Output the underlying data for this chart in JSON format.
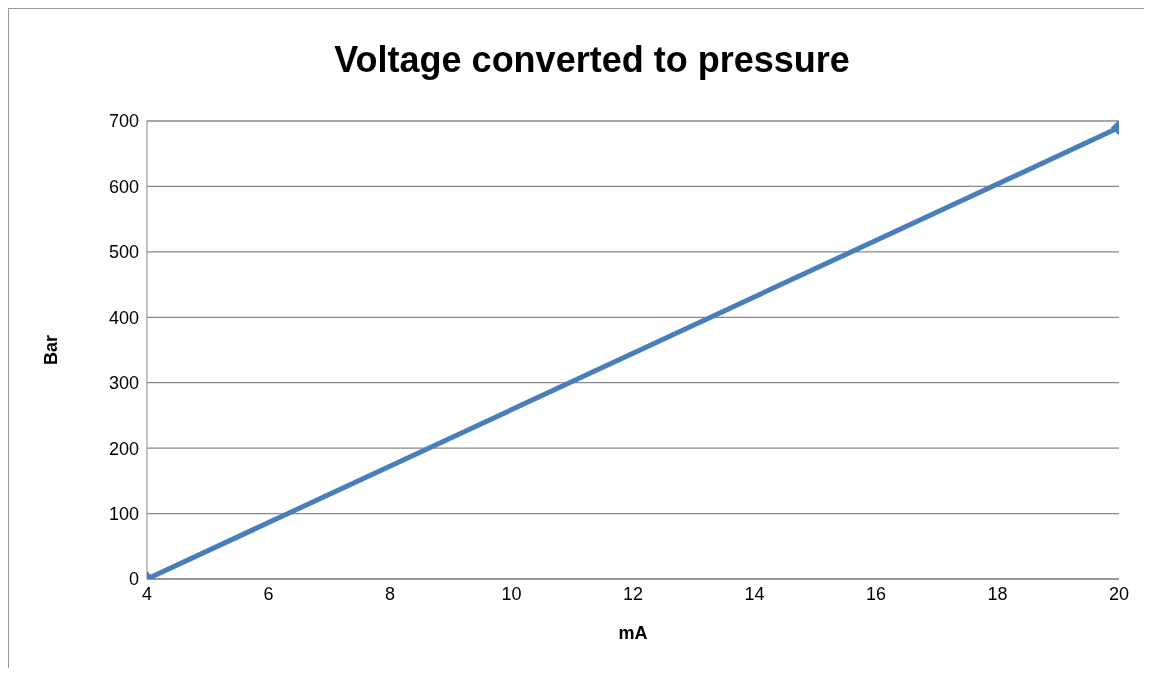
{
  "chart_data": {
    "type": "line",
    "title": "Voltage converted to pressure",
    "xlabel": "mA",
    "ylabel": "Bar",
    "x": [
      4,
      20
    ],
    "series": [
      {
        "color": "#4a7ebb",
        "values": [
          0,
          690
        ]
      }
    ],
    "xlim": [
      4,
      20
    ],
    "xticks": [
      4,
      6,
      8,
      10,
      12,
      14,
      16,
      18,
      20
    ],
    "ylim": [
      0,
      700
    ],
    "yticks": [
      0,
      100,
      200,
      300,
      400,
      500,
      600,
      700
    ],
    "grid": "y",
    "legend": false,
    "marker": "diamond",
    "line_style": "solid"
  }
}
